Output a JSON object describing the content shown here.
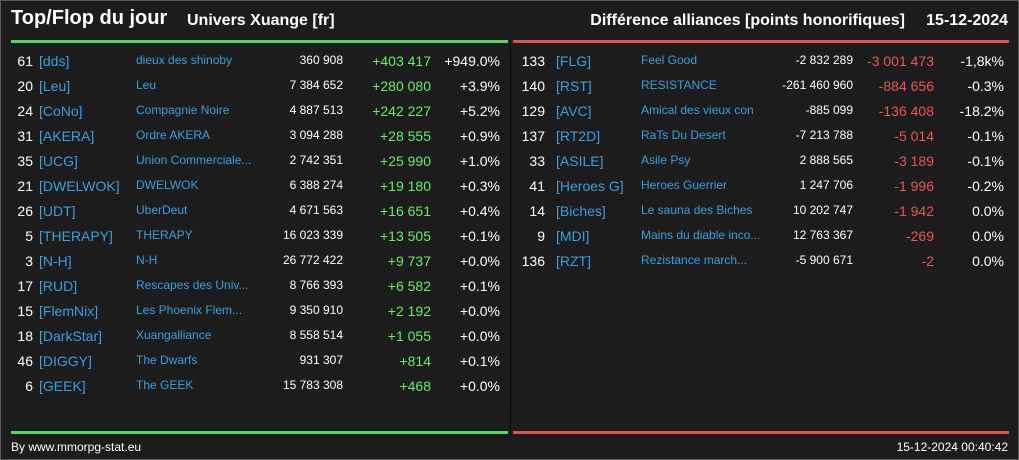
{
  "header": {
    "title": "Top/Flop du jour",
    "universe": "Univers Xuange [fr]",
    "subtitle": "Différence alliances [points honorifiques]",
    "date": "15-12-2024"
  },
  "colors": {
    "top": "#4cd964",
    "flop": "#e05050",
    "tag": "#3aa0e0"
  },
  "top": [
    {
      "rank": "61",
      "tag": "[dds]",
      "name": "dieux des shinoby",
      "points": "360 908",
      "diff": "+403 417",
      "pct": "+949.0%"
    },
    {
      "rank": "20",
      "tag": "[Leu]",
      "name": "Leu",
      "points": "7 384 652",
      "diff": "+280 080",
      "pct": "+3.9%"
    },
    {
      "rank": "24",
      "tag": "[CoNo]",
      "name": "Compagnie Noire",
      "points": "4 887 513",
      "diff": "+242 227",
      "pct": "+5.2%"
    },
    {
      "rank": "31",
      "tag": "[AKERA]",
      "name": "Ordre AKERA",
      "points": "3 094 288",
      "diff": "+28 555",
      "pct": "+0.9%"
    },
    {
      "rank": "35",
      "tag": "[UCG]",
      "name": "Union Commerciale...",
      "points": "2 742 351",
      "diff": "+25 990",
      "pct": "+1.0%"
    },
    {
      "rank": "21",
      "tag": "[DWELWOK]",
      "name": "DWELWOK",
      "points": "6 388 274",
      "diff": "+19 180",
      "pct": "+0.3%"
    },
    {
      "rank": "26",
      "tag": "[UDT]",
      "name": "UberDeut",
      "points": "4 671 563",
      "diff": "+16 651",
      "pct": "+0.4%"
    },
    {
      "rank": "5",
      "tag": "[THERAPY]",
      "name": "THERAPY",
      "points": "16 023 339",
      "diff": "+13 505",
      "pct": "+0.1%"
    },
    {
      "rank": "3",
      "tag": "[N-H]",
      "name": "N-H",
      "points": "26 772 422",
      "diff": "+9 737",
      "pct": "+0.0%"
    },
    {
      "rank": "17",
      "tag": "[RUD]",
      "name": "Rescapes des Univ...",
      "points": "8 766 393",
      "diff": "+6 582",
      "pct": "+0.1%"
    },
    {
      "rank": "15",
      "tag": "[FlemNix]",
      "name": "Les Phoenix Flem...",
      "points": "9 350 910",
      "diff": "+2 192",
      "pct": "+0.0%"
    },
    {
      "rank": "18",
      "tag": "[DarkStar]",
      "name": "Xuangalliance",
      "points": "8 558 514",
      "diff": "+1 055",
      "pct": "+0.0%"
    },
    {
      "rank": "46",
      "tag": "[DIGGY]",
      "name": "The Dwarfs",
      "points": "931 307",
      "diff": "+814",
      "pct": "+0.1%"
    },
    {
      "rank": "6",
      "tag": "[GEEK]",
      "name": "The GEEK",
      "points": "15 783 308",
      "diff": "+468",
      "pct": "+0.0%"
    }
  ],
  "flop": [
    {
      "rank": "133",
      "tag": "[FLG]",
      "name": "Feel Good",
      "points": "-2 832 289",
      "diff": "-3 001 473",
      "pct": "-1,8k%"
    },
    {
      "rank": "140",
      "tag": "[RST]",
      "name": "RESISTANCE",
      "points": "-261 460 960",
      "diff": "-884 656",
      "pct": "-0.3%"
    },
    {
      "rank": "129",
      "tag": "[AVC]",
      "name": "Amical des vieux con",
      "points": "-885 099",
      "diff": "-136 408",
      "pct": "-18.2%"
    },
    {
      "rank": "137",
      "tag": "[RT2D]",
      "name": "RaTs Du Desert",
      "points": "-7 213 788",
      "diff": "-5 014",
      "pct": "-0.1%"
    },
    {
      "rank": "33",
      "tag": "[ASILE]",
      "name": "Asile Psy",
      "points": "2 888 565",
      "diff": "-3 189",
      "pct": "-0.1%"
    },
    {
      "rank": "41",
      "tag": "[Heroes G]",
      "name": "Heroes Guerrier",
      "points": "1 247 706",
      "diff": "-1 996",
      "pct": "-0.2%"
    },
    {
      "rank": "14",
      "tag": "[Biches]",
      "name": "Le sauna des Biches",
      "points": "10 202 747",
      "diff": "-1 942",
      "pct": "0.0%"
    },
    {
      "rank": "9",
      "tag": "[MDI]",
      "name": "Mains du diable inco...",
      "points": "12 763 367",
      "diff": "-269",
      "pct": "0.0%"
    },
    {
      "rank": "136",
      "tag": "[RZT]",
      "name": "Rezistance march...",
      "points": "-5 900 671",
      "diff": "-2",
      "pct": "0.0%"
    }
  ],
  "footer": {
    "source": "By www.mmorpg-stat.eu",
    "timestamp": "15-12-2024 00:40:42"
  }
}
